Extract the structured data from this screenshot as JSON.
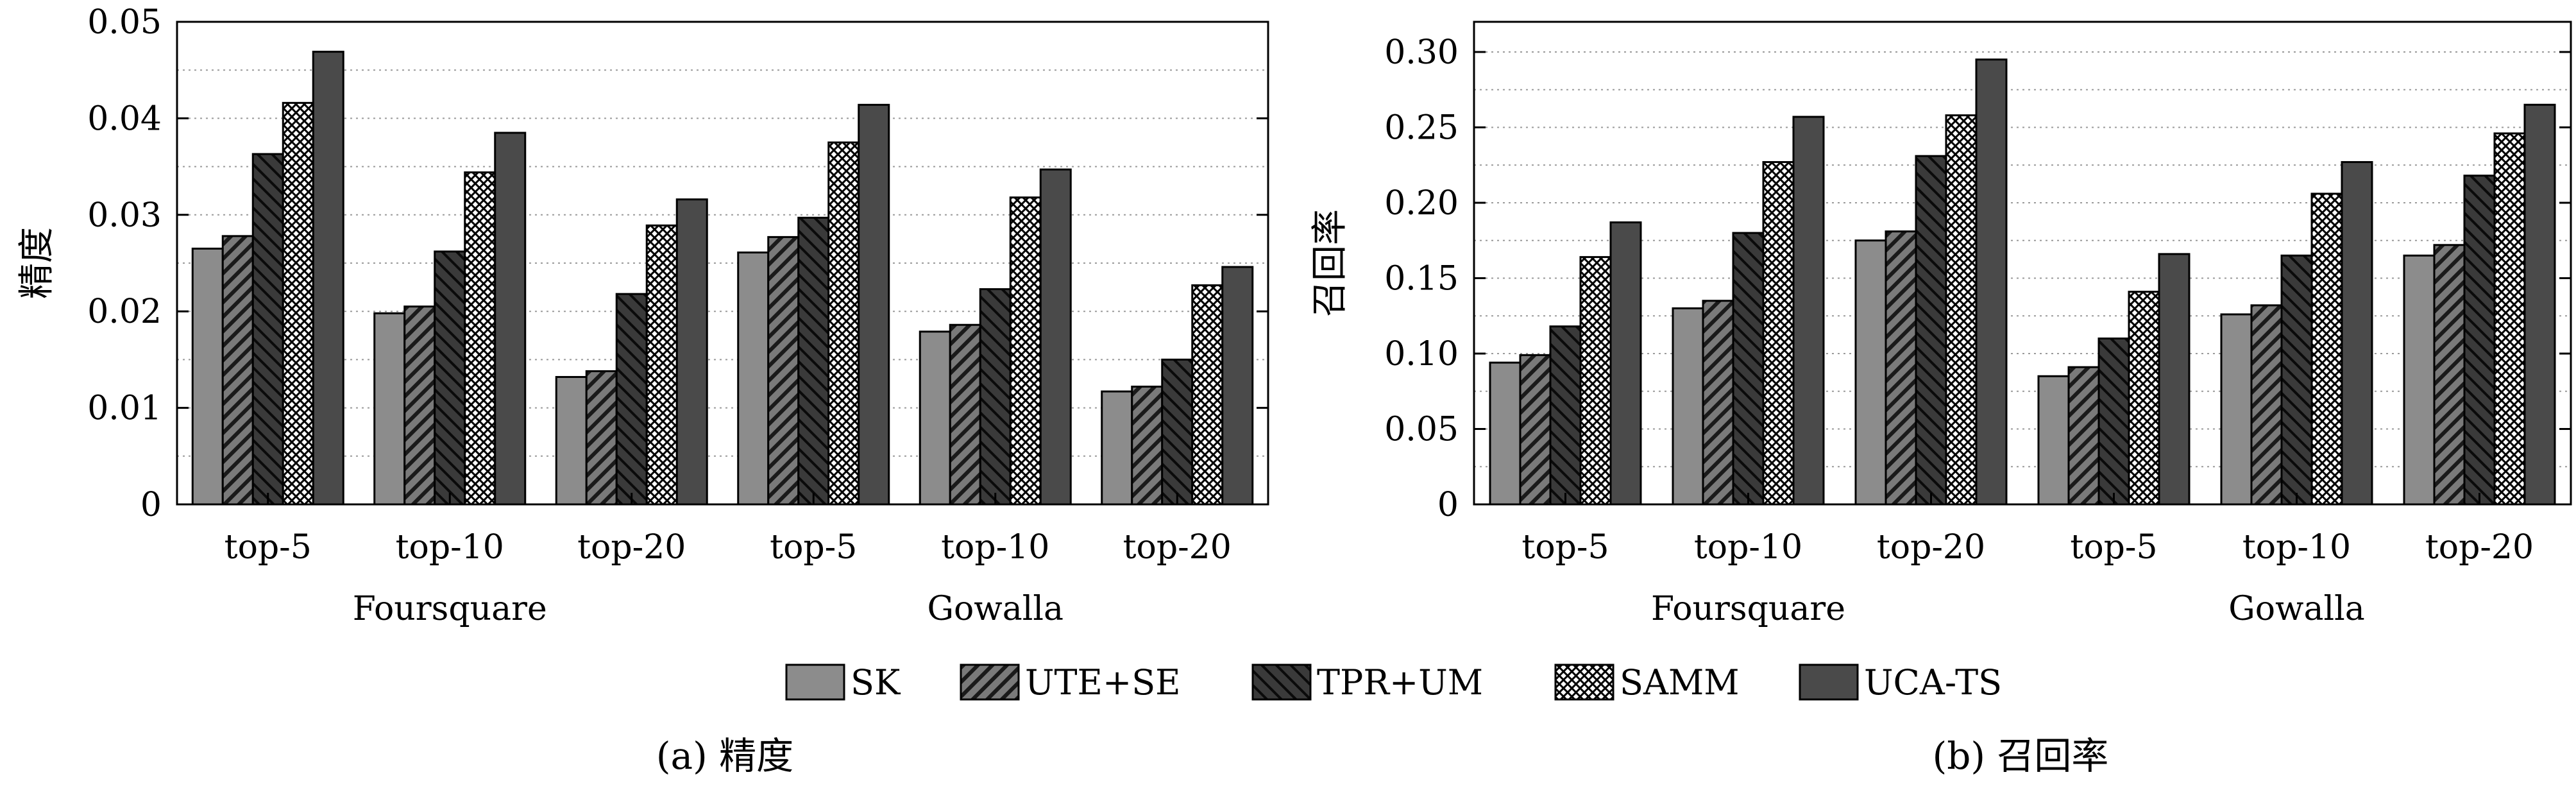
{
  "legend": [
    "SK",
    "UTE+SE",
    "TPR+UM",
    "SAMM",
    "UCA-TS"
  ],
  "colors": {
    "SK": "#8c8c8c",
    "UTE+SE": "#7a7a7a",
    "TPR+UM": "#3c3c3c",
    "SAMM": "#ffffff",
    "UCA-TS": "#4a4a4a"
  },
  "chart_data": [
    {
      "type": "bar",
      "caption": "(a) 精度",
      "ylabel": "精度",
      "ylim": [
        0,
        0.05
      ],
      "yticks": [
        "0",
        "0.01",
        "0.02",
        "0.03",
        "0.04",
        "0.05"
      ],
      "grid": "horizontal dotted",
      "groups": [
        "Foursquare",
        "Gowalla"
      ],
      "categories": [
        "top-5",
        "top-10",
        "top-20",
        "top-5",
        "top-10",
        "top-20"
      ],
      "series": [
        {
          "name": "SK",
          "values": [
            0.0265,
            0.0198,
            0.0132,
            0.0261,
            0.0179,
            0.0117
          ]
        },
        {
          "name": "UTE+SE",
          "values": [
            0.0278,
            0.0205,
            0.0138,
            0.0277,
            0.0186,
            0.0122
          ]
        },
        {
          "name": "TPR+UM",
          "values": [
            0.0363,
            0.0262,
            0.0218,
            0.0297,
            0.0223,
            0.015
          ]
        },
        {
          "name": "SAMM",
          "values": [
            0.0416,
            0.0344,
            0.0289,
            0.0375,
            0.0318,
            0.0227
          ]
        },
        {
          "name": "UCA-TS",
          "values": [
            0.0469,
            0.0385,
            0.0316,
            0.0414,
            0.0347,
            0.0246
          ]
        }
      ]
    },
    {
      "type": "bar",
      "caption": "(b) 召回率",
      "ylabel": "召回率",
      "ylim": [
        0,
        0.32
      ],
      "yticks": [
        "0",
        "0.05",
        "0.10",
        "0.15",
        "0.20",
        "0.25",
        "0.30"
      ],
      "grid": "horizontal dotted",
      "groups": [
        "Foursquare",
        "Gowalla"
      ],
      "categories": [
        "top-5",
        "top-10",
        "top-20",
        "top-5",
        "top-10",
        "top-20"
      ],
      "series": [
        {
          "name": "SK",
          "values": [
            0.094,
            0.13,
            0.175,
            0.085,
            0.126,
            0.165
          ]
        },
        {
          "name": "UTE+SE",
          "values": [
            0.099,
            0.135,
            0.181,
            0.091,
            0.132,
            0.172
          ]
        },
        {
          "name": "TPR+UM",
          "values": [
            0.118,
            0.18,
            0.231,
            0.11,
            0.165,
            0.218
          ]
        },
        {
          "name": "SAMM",
          "values": [
            0.164,
            0.227,
            0.258,
            0.141,
            0.206,
            0.246
          ]
        },
        {
          "name": "UCA-TS",
          "values": [
            0.187,
            0.257,
            0.295,
            0.166,
            0.227,
            0.265
          ]
        }
      ]
    }
  ]
}
